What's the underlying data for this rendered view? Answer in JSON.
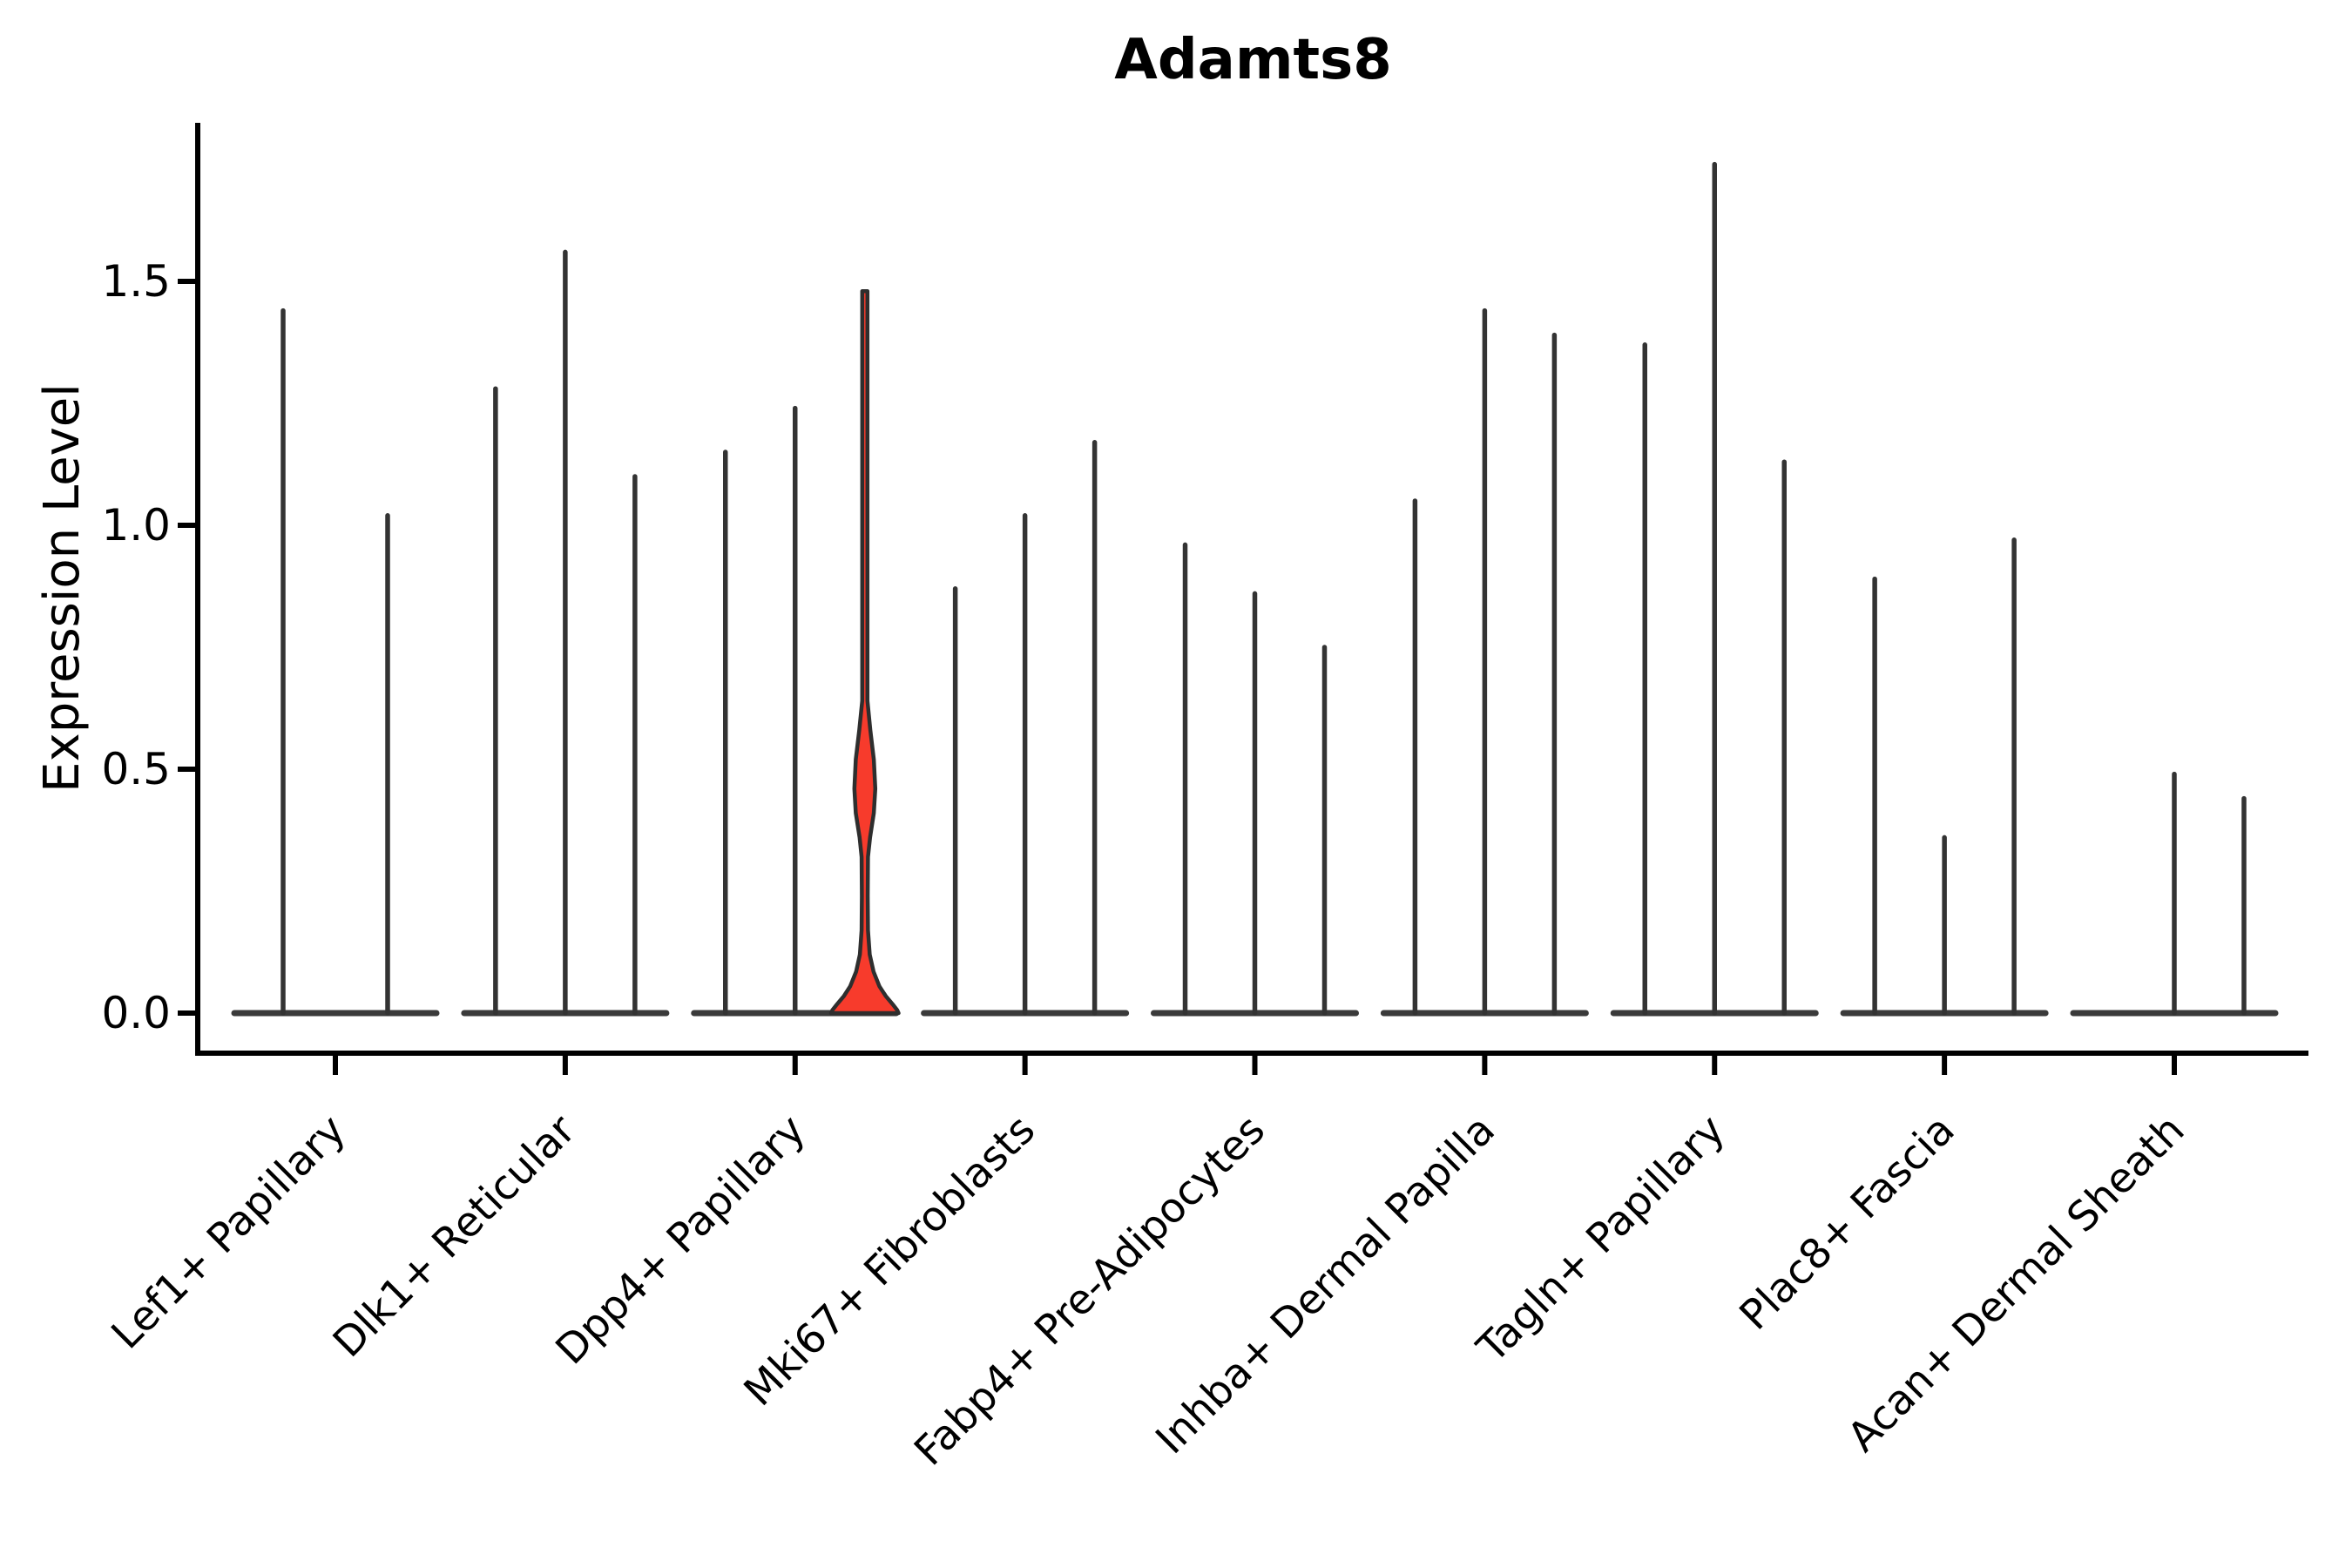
{
  "title": {
    "text": "Adamts8"
  },
  "axes": {
    "ylabel": "Expression Level",
    "ytick_labels": [
      "0.0",
      "0.5",
      "1.0",
      "1.5"
    ],
    "yticks": [
      0.0,
      0.5,
      1.0,
      1.5
    ],
    "ylim": [
      0.0,
      1.83
    ]
  },
  "colors": {
    "violin_line": "#333333",
    "baseline_line": "#3a3a3a",
    "highlight_fill": "#f73b2c",
    "highlight_stroke": "#2e2e2e",
    "axis": "#000000",
    "text": "#000000",
    "background": "#ffffff"
  },
  "chart_data": {
    "type": "violin",
    "title": "Adamts8",
    "ylabel": "Expression Level",
    "ylim": [
      0.0,
      1.83
    ],
    "yticks": [
      0.0,
      0.5,
      1.0,
      1.5
    ],
    "grid": false,
    "legend": false,
    "categories": [
      "Lef1+ Papillary",
      "Dlk1+ Reticular",
      "Dpp4+ Papillary",
      "Mki67+ Fibroblasts",
      "Fabp4+ Pre-Adipocytes",
      "Inhba+ Dermal Papilla",
      "Tagln+ Papillary",
      "Plac8+ Fascia",
      "Acan+ Dermal Sheath"
    ],
    "groups": [
      {
        "label": "Lef1+ Papillary",
        "violins": [
          {
            "peak": 1.44
          },
          {
            "peak": 1.02
          }
        ]
      },
      {
        "label": "Dlk1+ Reticular",
        "violins": [
          {
            "peak": 1.28
          },
          {
            "peak": 1.56
          },
          {
            "peak": 1.1
          }
        ]
      },
      {
        "label": "Dpp4+ Papillary",
        "violins": [
          {
            "peak": 1.15
          },
          {
            "peak": 1.24
          },
          {
            "peak": 1.48,
            "highlight": true
          }
        ]
      },
      {
        "label": "Mki67+ Fibroblasts",
        "violins": [
          {
            "peak": 0.87
          },
          {
            "peak": 1.02
          },
          {
            "peak": 1.17
          }
        ]
      },
      {
        "label": "Fabp4+ Pre-Adipocytes",
        "violins": [
          {
            "peak": 0.96
          },
          {
            "peak": 0.86
          },
          {
            "peak": 0.75
          }
        ]
      },
      {
        "label": "Inhba+ Dermal Papilla",
        "violins": [
          {
            "peak": 1.05
          },
          {
            "peak": 1.44
          },
          {
            "peak": 1.39
          }
        ]
      },
      {
        "label": "Tagln+ Papillary",
        "violins": [
          {
            "peak": 1.37
          },
          {
            "peak": 1.74
          },
          {
            "peak": 1.13
          }
        ]
      },
      {
        "label": "Plac8+ Fascia",
        "violins": [
          {
            "peak": 0.89
          },
          {
            "peak": 0.36
          },
          {
            "peak": 0.97
          }
        ]
      },
      {
        "label": "Acan+ Dermal Sheath",
        "violins": [
          {
            "peak": 0.0
          },
          {
            "peak": 0.49
          },
          {
            "peak": 0.44
          }
        ]
      }
    ],
    "highlight_profile": [
      [
        1.48,
        0.075
      ],
      [
        0.64,
        0.075
      ],
      [
        0.58,
        0.16
      ],
      [
        0.52,
        0.26
      ],
      [
        0.46,
        0.3
      ],
      [
        0.41,
        0.26
      ],
      [
        0.36,
        0.15
      ],
      [
        0.32,
        0.09
      ],
      [
        0.24,
        0.085
      ],
      [
        0.17,
        0.09
      ],
      [
        0.12,
        0.14
      ],
      [
        0.085,
        0.25
      ],
      [
        0.055,
        0.42
      ],
      [
        0.035,
        0.6
      ],
      [
        0.018,
        0.8
      ],
      [
        0.006,
        0.93
      ],
      [
        0.0,
        0.97
      ]
    ]
  }
}
